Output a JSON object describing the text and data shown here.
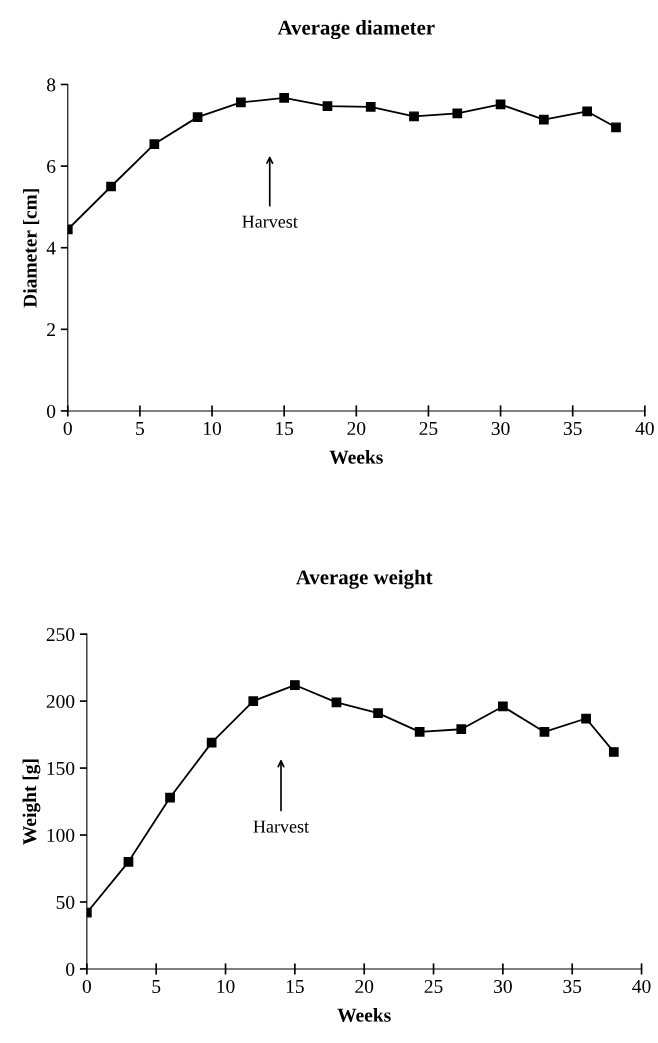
{
  "chart_data": [
    {
      "type": "line",
      "title": "Average diameter",
      "xlabel": "Weeks",
      "ylabel": "Diameter [cm]",
      "x": [
        0,
        3,
        6,
        9,
        12,
        15,
        18,
        21,
        24,
        27,
        30,
        33,
        36,
        38
      ],
      "series": [
        {
          "color": "#000000",
          "values": [
            4.45,
            5.5,
            6.54,
            7.2,
            7.56,
            7.67,
            7.47,
            7.45,
            7.22,
            7.29,
            7.51,
            7.14,
            7.34,
            6.95
          ]
        }
      ],
      "xlim": [
        0,
        40
      ],
      "xticks": [
        0,
        5,
        10,
        15,
        20,
        25,
        30,
        35,
        40
      ],
      "ylim": [
        0,
        8
      ],
      "yticks": [
        0,
        2,
        4,
        6,
        8
      ],
      "marker": "square",
      "line_style": "solid",
      "grid": false,
      "legend": false,
      "annotations": [
        "Harvest"
      ]
    },
    {
      "type": "line",
      "title": "Average weight",
      "xlabel": "Weeks",
      "ylabel": "Weight [g]",
      "x": [
        0,
        3,
        6,
        9,
        12,
        15,
        18,
        21,
        24,
        27,
        30,
        33,
        36,
        38
      ],
      "series": [
        {
          "color": "#000000",
          "values": [
            42,
            80,
            128,
            169,
            200,
            212,
            199,
            191,
            177,
            179,
            196,
            177,
            187,
            162
          ]
        }
      ],
      "xlim": [
        0,
        40
      ],
      "xticks": [
        0,
        5,
        10,
        15,
        20,
        25,
        30,
        35,
        40
      ],
      "ylim": [
        0,
        250
      ],
      "yticks": [
        0,
        50,
        100,
        150,
        200,
        250
      ],
      "marker": "square",
      "line_style": "solid",
      "grid": false,
      "legend": false,
      "annotations": [
        "Harvest"
      ]
    }
  ]
}
